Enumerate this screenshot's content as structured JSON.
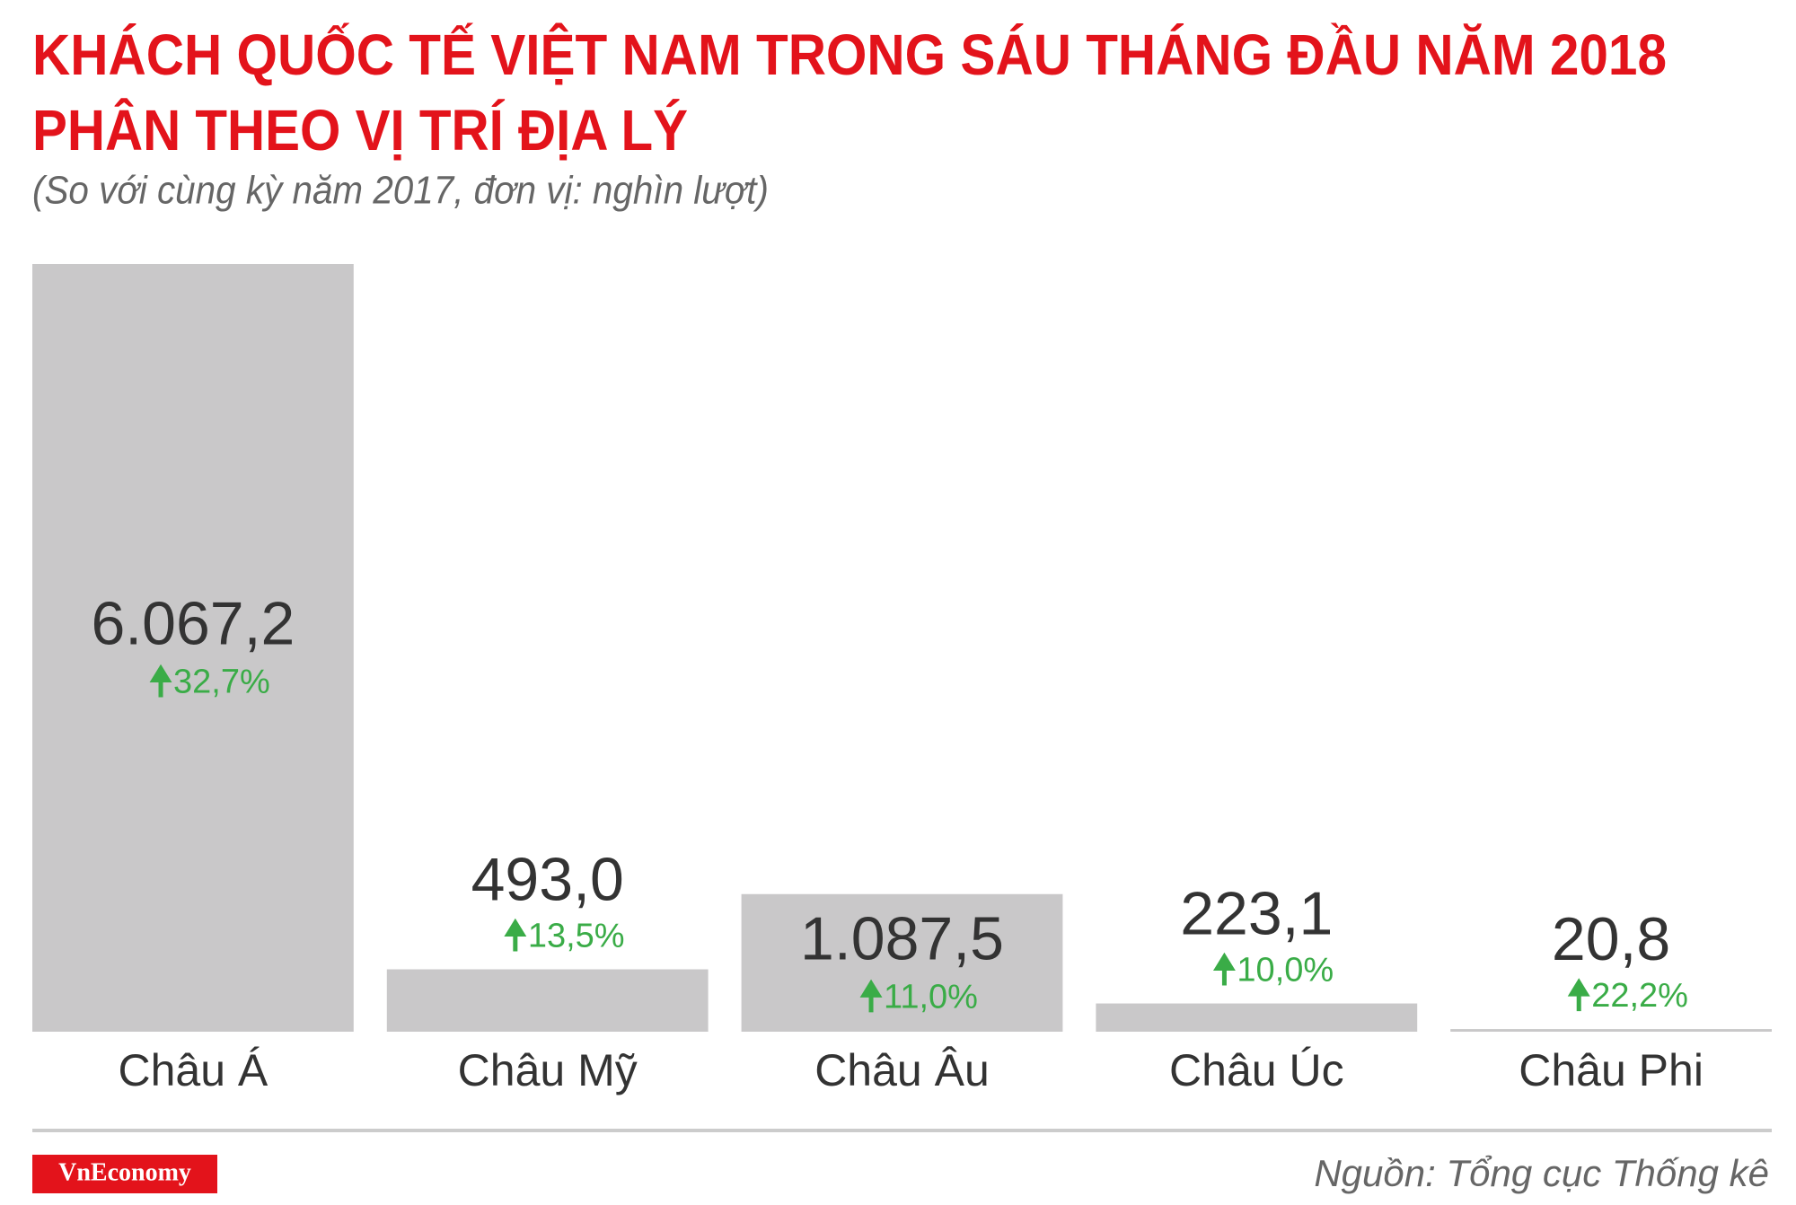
{
  "chart_data": {
    "type": "bar",
    "title": [
      "KHÁCH QUỐC TẾ VIỆT NAM TRONG SÁU THÁNG ĐẦU NĂM 2018",
      "PHÂN THEO VỊ TRÍ ĐỊA LÝ"
    ],
    "subtitle": "(So với cùng kỳ năm 2017, đơn vị: nghìn lượt)",
    "categories": [
      "Châu Á",
      "Châu Mỹ",
      "Châu Âu",
      "Châu Úc",
      "Châu Phi"
    ],
    "values": [
      6067.2,
      493.0,
      1087.5,
      223.1,
      20.8
    ],
    "value_labels": [
      "6.067,2",
      "493,0",
      "1.087,5",
      "223,1",
      "20,8"
    ],
    "changes": [
      32.7,
      13.5,
      11.0,
      10.0,
      22.2
    ],
    "change_labels": [
      "32,7%",
      "13,5%",
      "11,0%",
      "10,0%",
      "22,2%"
    ],
    "color": "#c9c8c9",
    "change_color": "#3aac47",
    "source": "Nguồn: Tổng cục Thống kê",
    "brand": "VnEconomy"
  }
}
